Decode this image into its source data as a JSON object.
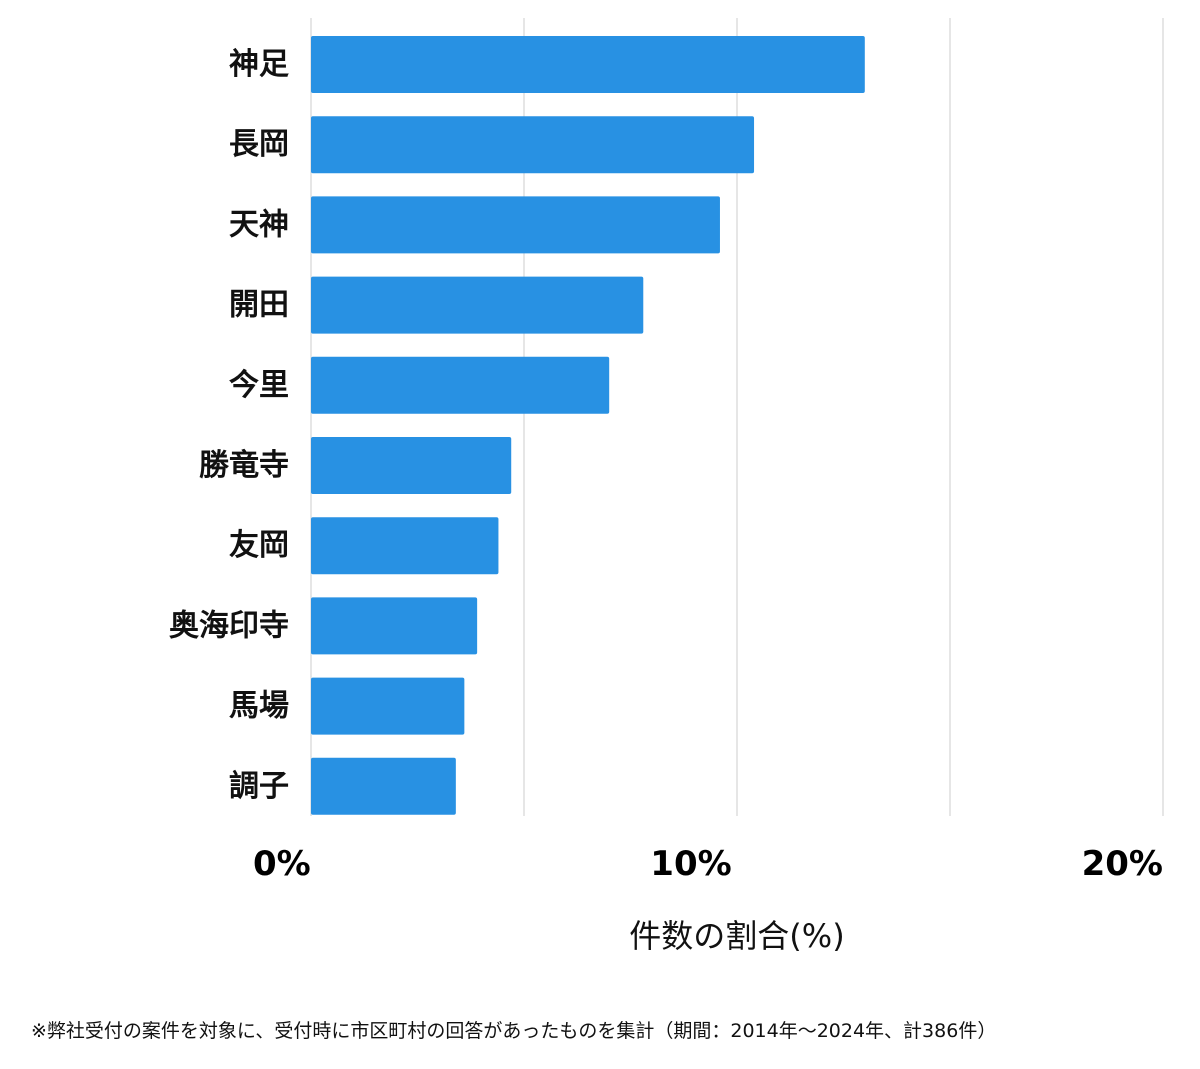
{
  "chart_data": {
    "type": "bar",
    "orientation": "horizontal",
    "categories": [
      "神足",
      "長岡",
      "天神",
      "開田",
      "今里",
      "勝竜寺",
      "友岡",
      "奥海印寺",
      "馬場",
      "調子"
    ],
    "values": [
      13.0,
      10.4,
      9.6,
      7.8,
      7.0,
      4.7,
      4.4,
      3.9,
      3.6,
      3.4
    ],
    "xlim": [
      0,
      20
    ],
    "x_tick_values": [
      0,
      10,
      20
    ],
    "x_tick_labels": [
      "0%",
      "10%",
      "20%"
    ],
    "gridline_values": [
      0,
      5,
      10,
      15,
      20
    ],
    "xlabel": "件数の割合(%)",
    "grid": true,
    "legend": "none",
    "bar_color": "#2891e3",
    "grid_color": "#dddddd"
  },
  "footnote": "※弊社受付の案件を対象に、受付時に市区町村の回答があったものを集計（期間：2014年〜2024年、計386件）"
}
